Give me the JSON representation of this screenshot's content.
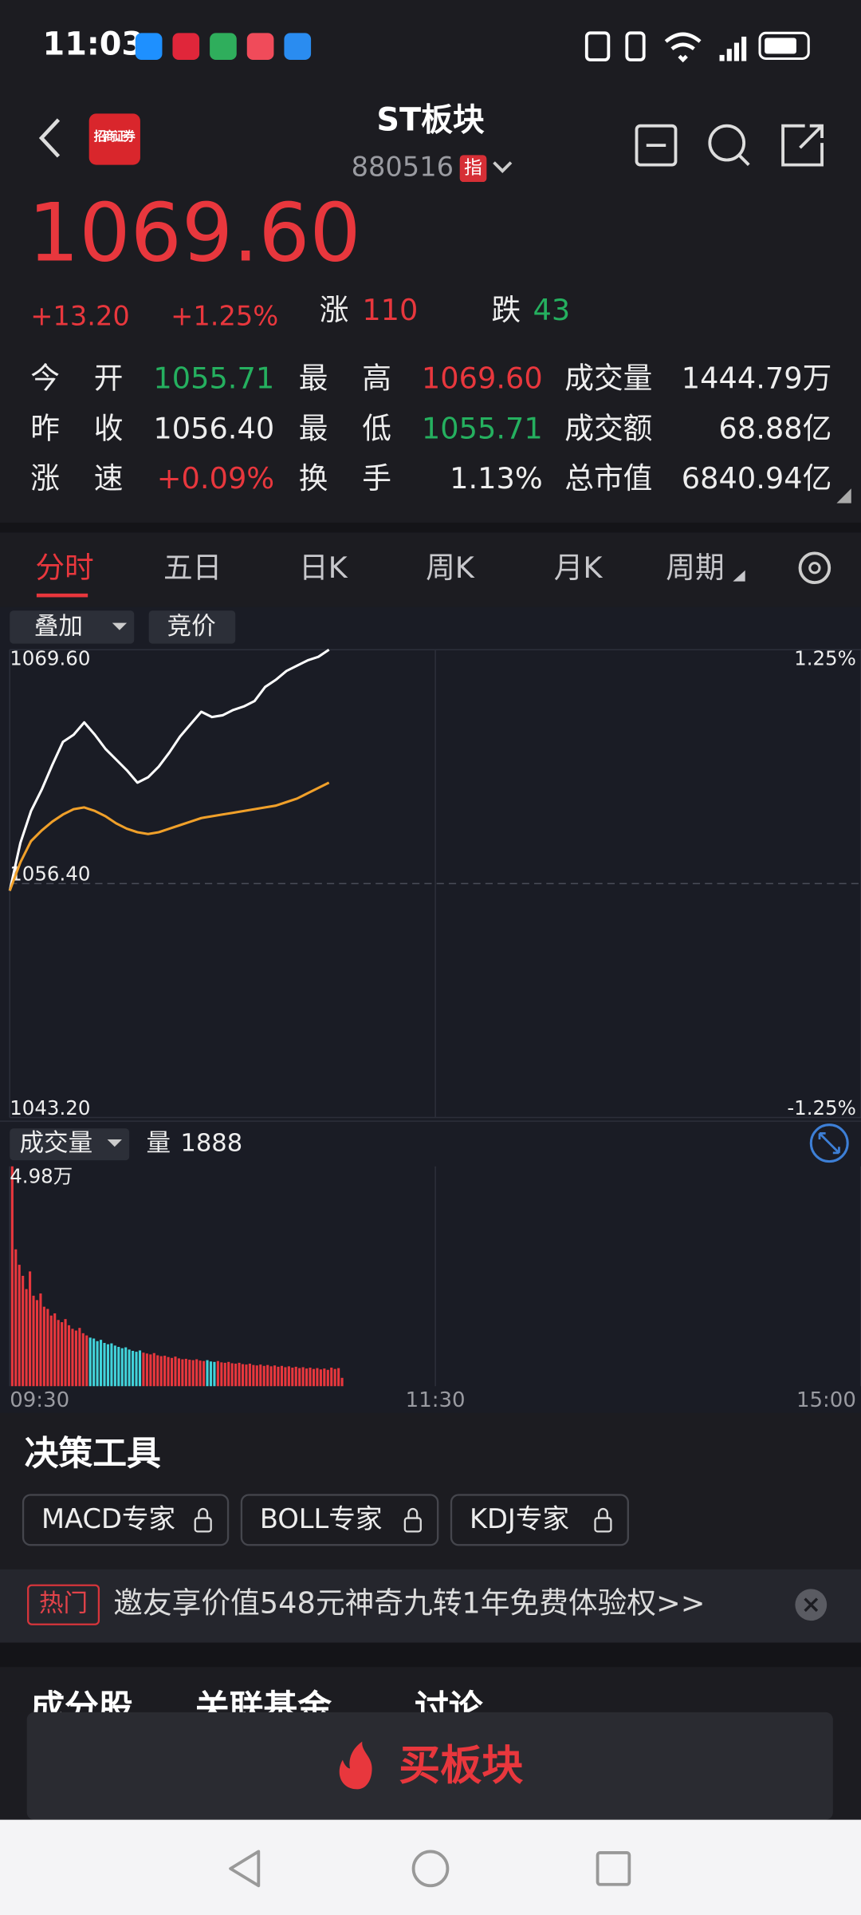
{
  "status_bar": {
    "time": "11:03"
  },
  "header": {
    "logo": "招商证券",
    "title": "ST板块",
    "code": "880516",
    "badge": "指"
  },
  "quote": {
    "price": "1069.60",
    "change": "+13.20",
    "change_pct": "+1.25%",
    "up_label": "涨",
    "up_count": "110",
    "down_label": "跌",
    "down_count": "43"
  },
  "stats": [
    [
      {
        "label": "今 开",
        "value": "1055.71"
      },
      {
        "label": "最 高",
        "value": "1069.60"
      },
      {
        "label": "成交量",
        "value": "1444.79万"
      }
    ],
    [
      {
        "label": "昨 收",
        "value": "1056.40"
      },
      {
        "label": "最 低",
        "value": "1055.71"
      },
      {
        "label": "成交额",
        "value": "68.88亿"
      }
    ],
    [
      {
        "label": "涨 速",
        "value": "+0.09%"
      },
      {
        "label": "换 手",
        "value": "1.13%"
      },
      {
        "label": "总市值",
        "value": "6840.94亿"
      }
    ]
  ],
  "tabs": [
    "分时",
    "五日",
    "日K",
    "周K",
    "月K",
    "周期"
  ],
  "chart_buttons": [
    "叠加",
    "竞价"
  ],
  "chart_data": [
    {
      "type": "line",
      "xlim": [
        0,
        240
      ],
      "ylim": [
        1043.2,
        1069.6
      ],
      "yticks": [
        {
          "value": 1069.6,
          "label": "1069.60"
        },
        {
          "value": 1056.4,
          "label": "1056.40"
        },
        {
          "value": 1043.2,
          "label": "1043.20"
        }
      ],
      "y2lim": [
        -1.25,
        1.25
      ],
      "y2ticks": [
        {
          "value": 1.25,
          "label": "1.25%"
        },
        {
          "value": -1.25,
          "label": "-1.25%"
        }
      ],
      "x": [
        0,
        3,
        6,
        9,
        12,
        15,
        18,
        21,
        24,
        27,
        30,
        33,
        36,
        39,
        42,
        45,
        48,
        51,
        54,
        57,
        60,
        63,
        66,
        69,
        72,
        75,
        78,
        81,
        84,
        87,
        90
      ],
      "series": [
        {
          "color": "#ffffff",
          "values": [
            1056.0,
            1058.7,
            1060.5,
            1061.7,
            1063.1,
            1064.4,
            1064.8,
            1065.5,
            1064.8,
            1064.0,
            1063.4,
            1062.8,
            1062.1,
            1062.4,
            1063.0,
            1063.8,
            1064.7,
            1065.4,
            1066.1,
            1065.8,
            1065.9,
            1066.2,
            1066.4,
            1066.7,
            1067.5,
            1067.9,
            1068.4,
            1068.7,
            1069.0,
            1069.2,
            1069.6
          ]
        },
        {
          "color": "#f0a02a",
          "values": [
            1056.0,
            1057.6,
            1058.8,
            1059.4,
            1059.9,
            1060.3,
            1060.6,
            1060.7,
            1060.5,
            1060.2,
            1059.8,
            1059.5,
            1059.3,
            1059.2,
            1059.3,
            1059.5,
            1059.7,
            1059.9,
            1060.1,
            1060.2,
            1060.3,
            1060.4,
            1060.5,
            1060.6,
            1060.7,
            1060.8,
            1061.0,
            1061.2,
            1061.5,
            1061.8,
            1062.1
          ]
        }
      ],
      "grid": true
    },
    {
      "type": "bar",
      "ylabel": "成交量",
      "volume_label": "量",
      "volume_now": 1888,
      "xlim": [
        0,
        240
      ],
      "xticks": [
        {
          "value": 0,
          "label": "09:30"
        },
        {
          "value": 120,
          "label": "11:30"
        },
        {
          "value": 240,
          "label": "15:00"
        }
      ],
      "ylim": [
        0,
        49800
      ],
      "yticks": [
        {
          "value": 49800,
          "label": "4.98万"
        }
      ],
      "up_color": "#e8373d",
      "down_color": "#41d3db",
      "x": [
        0,
        1,
        2,
        3,
        4,
        5,
        6,
        7,
        8,
        9,
        10,
        11,
        12,
        13,
        14,
        15,
        16,
        17,
        18,
        19,
        20,
        21,
        22,
        23,
        24,
        25,
        26,
        27,
        28,
        29,
        30,
        31,
        32,
        33,
        34,
        35,
        36,
        37,
        38,
        39,
        40,
        41,
        42,
        43,
        44,
        45,
        46,
        47,
        48,
        49,
        50,
        51,
        52,
        53,
        54,
        55,
        56,
        57,
        58,
        59,
        60,
        61,
        62,
        63,
        64,
        65,
        66,
        67,
        68,
        69,
        70,
        71,
        72,
        73,
        74,
        75,
        76,
        77,
        78,
        79,
        80,
        81,
        82,
        83,
        84,
        85,
        86,
        87,
        88,
        89,
        90,
        91,
        92,
        93
      ],
      "values": [
        49800,
        31000,
        27500,
        25000,
        22000,
        26000,
        20500,
        19500,
        21000,
        18000,
        17500,
        16000,
        16500,
        15000,
        14500,
        15200,
        13800,
        13000,
        12600,
        13200,
        12000,
        11500,
        11000,
        10800,
        10200,
        10500,
        9800,
        9500,
        9700,
        9200,
        8900,
        8600,
        8800,
        8300,
        8000,
        7800,
        8100,
        7600,
        7400,
        7200,
        7500,
        7000,
        6800,
        6900,
        6600,
        6400,
        6700,
        6300,
        6100,
        6200,
        6000,
        5900,
        6100,
        5800,
        5700,
        5900,
        5600,
        5500,
        5700,
        5400,
        5300,
        5500,
        5200,
        5100,
        5300,
        5000,
        4900,
        5100,
        4800,
        4700,
        4900,
        4600,
        4800,
        4500,
        4700,
        4400,
        4600,
        4300,
        4500,
        4200,
        4400,
        4100,
        4300,
        4000,
        4200,
        3900,
        4100,
        3800,
        4000,
        3700,
        4200,
        3900,
        4100,
        1888
      ]
    }
  ],
  "tools": {
    "title": "决策工具",
    "items": [
      "MACD专家",
      "BOLL专家",
      "KDJ专家"
    ]
  },
  "banner": {
    "tag": "热门",
    "text": "邀友享价值548元神奇九转1年免费体验权>>"
  },
  "bottom_tabs": [
    "成分股",
    "关联基金",
    "讨论"
  ],
  "buy_button": "买板块"
}
